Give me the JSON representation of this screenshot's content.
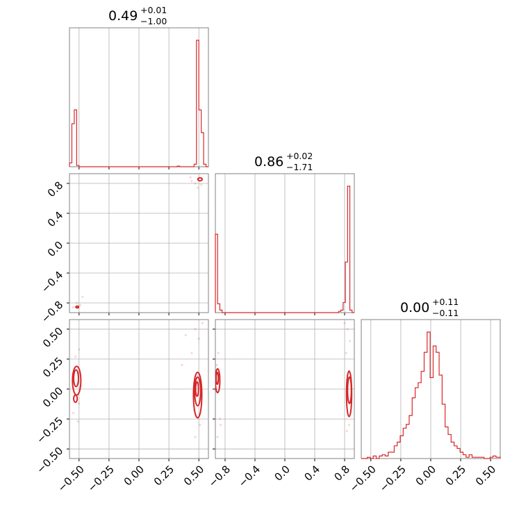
{
  "chart_data": {
    "type": "corner",
    "color": "#d62728",
    "grid": true,
    "parameters": [
      {
        "title": {
          "median": "0.49",
          "plus": "+0.01",
          "minus": "−1.00"
        }
      },
      {
        "title": {
          "median": "0.86",
          "plus": "+0.02",
          "minus": "−1.71"
        }
      },
      {
        "title": {
          "median": "0.00",
          "plus": "+0.11",
          "minus": "−0.11"
        }
      }
    ],
    "axes": {
      "p0": {
        "range": [
          -0.58,
          0.58
        ],
        "ticks": [
          -0.5,
          -0.25,
          0.0,
          0.25,
          0.5
        ],
        "labels": [
          "−0.50",
          "−0.25",
          "0.00",
          "0.25",
          "0.50"
        ]
      },
      "p1": {
        "range": [
          -0.93,
          0.93
        ],
        "ticks": [
          -0.8,
          -0.4,
          0.0,
          0.4,
          0.8
        ],
        "labels": [
          "−0.8",
          "−0.4",
          "0.0",
          "0.4",
          "0.8"
        ]
      },
      "p2": {
        "range": [
          -0.58,
          0.58
        ],
        "ticks": [
          -0.5,
          -0.25,
          0.0,
          0.25,
          0.5
        ],
        "labels": [
          "−0.50",
          "−0.25",
          "0.00",
          "0.25",
          "0.50"
        ]
      }
    },
    "histograms": {
      "p0": {
        "edges": [
          -0.58,
          -0.56,
          -0.54,
          -0.52,
          -0.5,
          -0.48,
          0.32,
          0.34,
          0.46,
          0.48,
          0.5,
          0.52,
          0.54,
          0.56,
          0.58
        ],
        "counts": [
          0.03,
          0.34,
          0.45,
          0.01,
          0.0,
          0.0,
          0.005,
          0.0,
          0.02,
          1.0,
          0.45,
          0.27,
          0.02,
          0.0
        ]
      },
      "p1": {
        "edges": [
          -0.93,
          -0.9,
          -0.87,
          -0.84,
          -0.81,
          0.72,
          0.75,
          0.78,
          0.81,
          0.84,
          0.87,
          0.9,
          0.93
        ],
        "counts": [
          0.62,
          0.07,
          0.02,
          0.0,
          0.0,
          0.01,
          0.02,
          0.08,
          0.4,
          1.0,
          0.02,
          0.0
        ]
      },
      "p2": {
        "edges": [
          -0.58,
          -0.555,
          -0.53,
          -0.505,
          -0.48,
          -0.455,
          -0.43,
          -0.405,
          -0.38,
          -0.355,
          -0.33,
          -0.305,
          -0.28,
          -0.255,
          -0.23,
          -0.205,
          -0.18,
          -0.155,
          -0.13,
          -0.105,
          -0.08,
          -0.055,
          -0.03,
          -0.005,
          0.02,
          0.045,
          0.07,
          0.095,
          0.12,
          0.145,
          0.17,
          0.195,
          0.22,
          0.245,
          0.27,
          0.295,
          0.32,
          0.345,
          0.37,
          0.395,
          0.42,
          0.445,
          0.47,
          0.495,
          0.52,
          0.545,
          0.58
        ],
        "counts": [
          0.0,
          0.0,
          0.01,
          0.0,
          0.02,
          0.0,
          0.02,
          0.03,
          0.02,
          0.05,
          0.05,
          0.1,
          0.13,
          0.18,
          0.24,
          0.27,
          0.34,
          0.48,
          0.56,
          0.6,
          0.69,
          0.84,
          1.0,
          0.64,
          0.89,
          0.84,
          0.66,
          0.43,
          0.25,
          0.19,
          0.13,
          0.1,
          0.08,
          0.05,
          0.03,
          0.01,
          0.03,
          0.01,
          0.01,
          0.01,
          0.01,
          0.0,
          0.0,
          0.01,
          0.02,
          0.01
        ]
      }
    },
    "contours_2d": {
      "p0_p1": [
        {
          "cx": 0.51,
          "cy": 0.855,
          "rx": 0.018,
          "ry": 0.02
        },
        {
          "cx": -0.515,
          "cy": -0.855,
          "rx": 0.012,
          "ry": 0.012
        }
      ],
      "p0_p2": [
        {
          "cx": -0.52,
          "cy": 0.07,
          "rx": 0.035,
          "ry": 0.12
        },
        {
          "cx": -0.525,
          "cy": 0.09,
          "rx": 0.02,
          "ry": 0.07
        },
        {
          "cx": -0.53,
          "cy": -0.08,
          "rx": 0.015,
          "ry": 0.03
        },
        {
          "cx": 0.49,
          "cy": -0.05,
          "rx": 0.035,
          "ry": 0.19
        },
        {
          "cx": 0.49,
          "cy": -0.02,
          "rx": 0.025,
          "ry": 0.12
        },
        {
          "cx": 0.485,
          "cy": 0.0,
          "rx": 0.012,
          "ry": 0.06
        }
      ],
      "p1_p2": [
        {
          "cx": -0.9,
          "cy": 0.07,
          "rx": 0.03,
          "ry": 0.1
        },
        {
          "cx": -0.905,
          "cy": 0.09,
          "rx": 0.015,
          "ry": 0.05
        },
        {
          "cx": 0.86,
          "cy": -0.04,
          "rx": 0.035,
          "ry": 0.19
        },
        {
          "cx": 0.865,
          "cy": -0.01,
          "rx": 0.025,
          "ry": 0.11
        }
      ]
    },
    "samples_2d": {
      "p0_p1": [
        [
          0.44,
          0.83
        ],
        [
          0.47,
          0.8
        ],
        [
          0.52,
          0.78
        ],
        [
          0.43,
          0.88
        ],
        [
          -0.52,
          -0.8
        ],
        [
          -0.49,
          -0.83
        ],
        [
          -0.55,
          -0.86
        ],
        [
          0.49,
          0.74
        ],
        [
          -0.47,
          -0.72
        ]
      ],
      "p0_p2": [
        [
          -0.53,
          0.27
        ],
        [
          -0.5,
          0.33
        ],
        [
          -0.55,
          -0.2
        ],
        [
          -0.51,
          -0.27
        ],
        [
          0.47,
          0.5
        ],
        [
          0.5,
          0.42
        ],
        [
          0.44,
          0.3
        ],
        [
          0.51,
          -0.3
        ],
        [
          0.47,
          -0.4
        ],
        [
          0.53,
          0.55
        ],
        [
          0.36,
          0.2
        ],
        [
          0.46,
          -0.18
        ],
        [
          -0.5,
          -0.12
        ],
        [
          0.39,
          0.45
        ]
      ],
      "p1_p2": [
        [
          -0.89,
          0.3
        ],
        [
          -0.87,
          -0.25
        ],
        [
          -0.86,
          -0.3
        ],
        [
          -0.9,
          -0.4
        ],
        [
          0.84,
          0.5
        ],
        [
          0.87,
          0.4
        ],
        [
          0.82,
          0.3
        ],
        [
          0.86,
          -0.3
        ],
        [
          0.83,
          -0.35
        ],
        [
          0.8,
          0.55
        ],
        [
          0.88,
          -0.2
        ],
        [
          -0.91,
          0.2
        ]
      ]
    }
  }
}
